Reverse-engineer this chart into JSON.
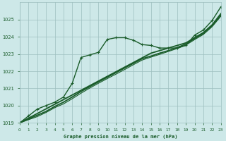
{
  "title": "Graphe pression niveau de la mer (hPa)",
  "background_color": "#cde8e8",
  "grid_color": "#9dbfbf",
  "line_color": "#1a5c2a",
  "xlim": [
    0,
    23
  ],
  "ylim": [
    1019,
    1026
  ],
  "yticks": [
    1019,
    1020,
    1021,
    1022,
    1023,
    1024,
    1025
  ],
  "xticks": [
    0,
    1,
    2,
    3,
    4,
    5,
    6,
    7,
    8,
    9,
    10,
    11,
    12,
    13,
    14,
    15,
    16,
    17,
    18,
    19,
    20,
    21,
    22,
    23
  ],
  "series": [
    {
      "x": [
        0,
        1,
        2,
        3,
        4,
        5,
        6,
        7,
        8,
        9,
        10,
        11,
        12,
        13,
        14,
        15,
        16,
        17,
        18,
        19,
        20,
        21,
        22,
        23
      ],
      "y": [
        1019.0,
        1019.4,
        1019.8,
        1020.0,
        1020.2,
        1020.5,
        1021.3,
        1022.8,
        1022.95,
        1023.1,
        1023.85,
        1023.95,
        1023.95,
        1023.8,
        1023.55,
        1023.5,
        1023.35,
        1023.35,
        1023.35,
        1023.5,
        1024.1,
        1024.4,
        1024.95,
        1025.75
      ],
      "marker": "+",
      "lw": 1.0,
      "ms": 3.5
    },
    {
      "x": [
        0,
        1,
        2,
        3,
        4,
        5,
        6,
        7,
        8,
        9,
        10,
        11,
        12,
        13,
        14,
        15,
        16,
        17,
        18,
        19,
        20,
        21,
        22,
        23
      ],
      "y": [
        1019.0,
        1019.27,
        1019.54,
        1019.81,
        1020.08,
        1020.35,
        1020.62,
        1020.89,
        1021.16,
        1021.43,
        1021.7,
        1021.97,
        1022.24,
        1022.51,
        1022.78,
        1023.05,
        1023.2,
        1023.35,
        1023.5,
        1023.65,
        1023.95,
        1024.25,
        1024.7,
        1025.35
      ],
      "marker": null,
      "lw": 1.3
    },
    {
      "x": [
        0,
        1,
        2,
        3,
        4,
        5,
        6,
        7,
        8,
        9,
        10,
        11,
        12,
        13,
        14,
        15,
        16,
        17,
        18,
        19,
        20,
        21,
        22,
        23
      ],
      "y": [
        1019.0,
        1019.22,
        1019.44,
        1019.66,
        1019.95,
        1020.2,
        1020.5,
        1020.82,
        1021.1,
        1021.38,
        1021.65,
        1021.92,
        1022.19,
        1022.46,
        1022.73,
        1022.88,
        1023.05,
        1023.2,
        1023.38,
        1023.58,
        1023.9,
        1024.2,
        1024.65,
        1025.25
      ],
      "marker": null,
      "lw": 1.3
    },
    {
      "x": [
        0,
        1,
        2,
        3,
        4,
        5,
        6,
        7,
        8,
        9,
        10,
        11,
        12,
        13,
        14,
        15,
        16,
        17,
        18,
        19,
        20,
        21,
        22,
        23
      ],
      "y": [
        1019.0,
        1019.18,
        1019.36,
        1019.6,
        1019.88,
        1020.1,
        1020.4,
        1020.72,
        1021.02,
        1021.3,
        1021.57,
        1021.83,
        1022.1,
        1022.38,
        1022.65,
        1022.82,
        1022.98,
        1023.15,
        1023.32,
        1023.52,
        1023.84,
        1024.14,
        1024.59,
        1025.2
      ],
      "marker": null,
      "lw": 0.8
    }
  ]
}
